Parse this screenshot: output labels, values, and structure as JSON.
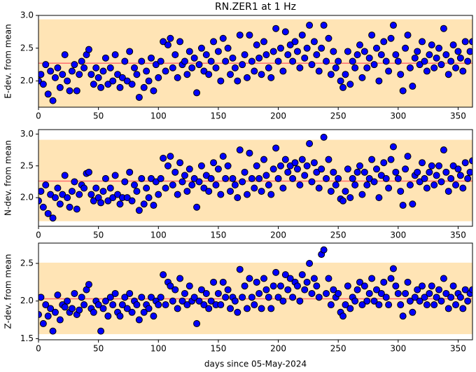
{
  "chart_data": [
    {
      "type": "scatter",
      "title": "RN.ZER1 at 1 Hz",
      "ylabel": "E-dev. from mean",
      "x": [
        0,
        2,
        4,
        6,
        8,
        10,
        12,
        14,
        16,
        18,
        20,
        22,
        24,
        26,
        28,
        30,
        32,
        34,
        36,
        38,
        40,
        42,
        44,
        46,
        48,
        50,
        52,
        54,
        56,
        58,
        60,
        62,
        64,
        66,
        68,
        70,
        72,
        74,
        76,
        78,
        80,
        82,
        84,
        86,
        88,
        90,
        92,
        94,
        96,
        98,
        100,
        102,
        104,
        106,
        108,
        110,
        112,
        114,
        116,
        118,
        120,
        122,
        124,
        126,
        128,
        130,
        132,
        134,
        136,
        138,
        140,
        142,
        144,
        146,
        148,
        150,
        152,
        154,
        156,
        158,
        160,
        162,
        164,
        166,
        168,
        170,
        172,
        174,
        176,
        178,
        180,
        182,
        184,
        186,
        188,
        190,
        192,
        194,
        196,
        198,
        200,
        202,
        204,
        206,
        208,
        210,
        212,
        214,
        216,
        218,
        220,
        222,
        224,
        226,
        228,
        230,
        232,
        234,
        236,
        238,
        240,
        242,
        244,
        246,
        248,
        250,
        252,
        254,
        256,
        258,
        260,
        262,
        264,
        266,
        268,
        270,
        272,
        274,
        276,
        278,
        280,
        282,
        284,
        286,
        288,
        290,
        292,
        294,
        296,
        298,
        300,
        302,
        304,
        306,
        308,
        310,
        312,
        314,
        316,
        318,
        320,
        322,
        324,
        326,
        328,
        330,
        332,
        334,
        336,
        338,
        340,
        342,
        344,
        346,
        348,
        350,
        352,
        354,
        356,
        358,
        360,
        362
      ],
      "values": [
        2.0,
        2.1,
        1.95,
        2.25,
        1.8,
        2.15,
        1.7,
        2.05,
        2.2,
        1.9,
        2.1,
        2.4,
        2.0,
        1.85,
        2.15,
        2.25,
        1.85,
        2.1,
        2.3,
        2.2,
        2.4,
        2.48,
        2.1,
        1.95,
        2.2,
        2.05,
        1.9,
        2.15,
        2.35,
        1.95,
        2.2,
        2.0,
        2.4,
        2.1,
        1.9,
        2.05,
        2.3,
        2.0,
        2.45,
        1.95,
        2.2,
        2.1,
        1.75,
        2.3,
        1.9,
        2.15,
        2.0,
        2.35,
        1.85,
        2.25,
        2.05,
        2.3,
        2.6,
        2.15,
        2.55,
        2.65,
        2.2,
        2.4,
        2.05,
        2.6,
        2.25,
        2.3,
        2.1,
        2.45,
        2.2,
        2.35,
        1.82,
        2.25,
        2.5,
        2.15,
        2.4,
        2.1,
        2.3,
        2.6,
        2.2,
        2.45,
        2.0,
        2.65,
        2.3,
        2.5,
        2.1,
        2.35,
        2.2,
        2.0,
        2.7,
        2.25,
        2.4,
        2.05,
        2.7,
        2.3,
        2.15,
        2.55,
        2.35,
        2.1,
        2.6,
        2.4,
        2.2,
        2.05,
        2.45,
        2.8,
        2.3,
        2.5,
        2.15,
        2.75,
        2.4,
        2.55,
        2.3,
        2.6,
        2.45,
        2.2,
        2.7,
        2.35,
        2.5,
        2.85,
        2.25,
        2.6,
        2.4,
        2.15,
        2.5,
        2.85,
        2.3,
        2.65,
        2.1,
        2.45,
        2.2,
        2.3,
        2.0,
        1.9,
        2.1,
        2.45,
        1.95,
        2.3,
        2.2,
        2.4,
        2.55,
        2.05,
        2.45,
        2.2,
        2.35,
        2.7,
        2.25,
        2.5,
        2.0,
        2.4,
        2.6,
        2.3,
        2.15,
        2.65,
        2.85,
        2.4,
        2.3,
        2.1,
        1.85,
        2.5,
        2.7,
        2.2,
        1.92,
        2.35,
        2.45,
        2.25,
        2.6,
        2.3,
        2.15,
        2.4,
        2.55,
        2.2,
        2.35,
        2.5,
        2.25,
        2.8,
        2.4,
        2.1,
        2.3,
        2.55,
        2.2,
        2.45,
        2.35,
        2.15,
        2.6,
        2.3,
        2.45,
        2.6
      ],
      "color": "#0000ff",
      "band": [
        1.6,
        2.94
      ],
      "band_color": "#ffe4b5",
      "mean": 2.27,
      "mean_color": "#ff6f6f",
      "xlim": [
        0,
        362
      ],
      "xticks": [
        0,
        50,
        100,
        150,
        200,
        250,
        300,
        350
      ],
      "ylim": [
        1.6,
        3.0
      ],
      "yticks": [
        {
          "value": 2.0,
          "label": "2.0"
        },
        2.5,
        {
          "value": 3.0,
          "label": "3.0"
        }
      ]
    },
    {
      "type": "scatter",
      "ylabel": "N-dev. from mean",
      "x": [
        0,
        2,
        4,
        6,
        8,
        10,
        12,
        14,
        16,
        18,
        20,
        22,
        24,
        26,
        28,
        30,
        32,
        34,
        36,
        38,
        40,
        42,
        44,
        46,
        48,
        50,
        52,
        54,
        56,
        58,
        60,
        62,
        64,
        66,
        68,
        70,
        72,
        74,
        76,
        78,
        80,
        82,
        84,
        86,
        88,
        90,
        92,
        94,
        96,
        98,
        100,
        102,
        104,
        106,
        108,
        110,
        112,
        114,
        116,
        118,
        120,
        122,
        124,
        126,
        128,
        130,
        132,
        134,
        136,
        138,
        140,
        142,
        144,
        146,
        148,
        150,
        152,
        154,
        156,
        158,
        160,
        162,
        164,
        166,
        168,
        170,
        172,
        174,
        176,
        178,
        180,
        182,
        184,
        186,
        188,
        190,
        192,
        194,
        196,
        198,
        200,
        202,
        204,
        206,
        208,
        210,
        212,
        214,
        216,
        218,
        220,
        222,
        224,
        226,
        228,
        230,
        232,
        234,
        236,
        238,
        240,
        242,
        244,
        246,
        248,
        250,
        252,
        254,
        256,
        258,
        260,
        262,
        264,
        266,
        268,
        270,
        272,
        274,
        276,
        278,
        280,
        282,
        284,
        286,
        288,
        290,
        292,
        294,
        296,
        298,
        300,
        302,
        304,
        306,
        308,
        310,
        312,
        314,
        316,
        318,
        320,
        322,
        324,
        326,
        328,
        330,
        332,
        334,
        336,
        338,
        340,
        342,
        344,
        346,
        348,
        350,
        352,
        354,
        356,
        358,
        360,
        362
      ],
      "values": [
        1.95,
        2.1,
        1.85,
        2.2,
        1.75,
        2.05,
        1.68,
        2.0,
        2.15,
        1.9,
        2.05,
        2.35,
        2.0,
        1.85,
        2.1,
        2.25,
        1.82,
        2.05,
        2.2,
        2.15,
        2.38,
        2.4,
        2.05,
        1.95,
        2.15,
        2.0,
        1.92,
        2.1,
        2.3,
        1.95,
        2.15,
        2.0,
        2.35,
        2.05,
        1.9,
        2.0,
        2.25,
        2.0,
        2.4,
        1.95,
        2.2,
        2.1,
        1.8,
        2.3,
        1.9,
        2.15,
        2.0,
        2.3,
        1.88,
        2.25,
        2.05,
        2.3,
        2.62,
        2.15,
        2.5,
        2.65,
        2.2,
        2.4,
        2.05,
        2.55,
        2.25,
        2.35,
        2.1,
        2.45,
        2.2,
        2.3,
        1.85,
        2.25,
        2.5,
        2.15,
        2.35,
        2.1,
        2.3,
        2.55,
        2.2,
        2.45,
        2.05,
        2.65,
        2.3,
        2.5,
        2.1,
        2.3,
        2.2,
        2.0,
        2.75,
        2.25,
        2.4,
        2.05,
        2.7,
        2.3,
        2.15,
        2.5,
        2.3,
        2.1,
        2.6,
        2.35,
        2.2,
        2.05,
        2.45,
        2.78,
        2.3,
        2.5,
        2.15,
        2.6,
        2.4,
        2.5,
        2.3,
        2.55,
        2.45,
        2.2,
        2.6,
        2.35,
        2.5,
        2.85,
        2.25,
        2.55,
        2.4,
        2.15,
        2.45,
        2.95,
        2.3,
        2.6,
        2.1,
        2.4,
        2.2,
        2.3,
        1.98,
        1.95,
        2.1,
        2.45,
        2.0,
        2.3,
        2.2,
        2.4,
        2.5,
        2.05,
        2.4,
        2.2,
        2.3,
        2.6,
        2.25,
        2.45,
        2.0,
        2.35,
        2.55,
        2.3,
        2.15,
        2.6,
        2.8,
        2.4,
        2.3,
        2.1,
        1.88,
        2.45,
        2.65,
        2.2,
        1.9,
        2.35,
        2.4,
        2.25,
        2.55,
        2.3,
        2.15,
        2.4,
        2.5,
        2.2,
        2.35,
        2.5,
        2.25,
        2.75,
        2.4,
        2.1,
        2.3,
        2.5,
        2.2,
        2.45,
        2.35,
        2.15,
        2.55,
        2.3,
        2.4,
        2.58
      ],
      "color": "#0000ff",
      "band": [
        1.63,
        2.91
      ],
      "band_color": "#ffe4b5",
      "mean": 2.26,
      "mean_color": "#ff6f6f",
      "xlim": [
        0,
        362
      ],
      "xticks": [
        0,
        50,
        100,
        150,
        200,
        250,
        300,
        350
      ],
      "ylim": [
        1.55,
        3.07
      ],
      "yticks": [
        {
          "value": 2.0,
          "label": "2.0"
        },
        2.5,
        {
          "value": 3.0,
          "label": "3.0"
        }
      ]
    },
    {
      "type": "scatter",
      "ylabel": "Z-dev. from mean",
      "xlabel": "days since 05-May-2024",
      "x": [
        0,
        2,
        4,
        6,
        8,
        10,
        12,
        14,
        16,
        18,
        20,
        22,
        24,
        26,
        28,
        30,
        32,
        34,
        36,
        38,
        40,
        42,
        44,
        46,
        48,
        50,
        52,
        54,
        56,
        58,
        60,
        62,
        64,
        66,
        68,
        70,
        72,
        74,
        76,
        78,
        80,
        82,
        84,
        86,
        88,
        90,
        92,
        94,
        96,
        98,
        100,
        102,
        104,
        106,
        108,
        110,
        112,
        114,
        116,
        118,
        120,
        122,
        124,
        126,
        128,
        130,
        132,
        134,
        136,
        138,
        140,
        142,
        144,
        146,
        148,
        150,
        152,
        154,
        156,
        158,
        160,
        162,
        164,
        166,
        168,
        170,
        172,
        174,
        176,
        178,
        180,
        182,
        184,
        186,
        188,
        190,
        192,
        194,
        196,
        198,
        200,
        202,
        204,
        206,
        208,
        210,
        212,
        214,
        216,
        218,
        220,
        222,
        224,
        226,
        228,
        230,
        232,
        234,
        236,
        238,
        240,
        242,
        244,
        246,
        248,
        250,
        252,
        254,
        256,
        258,
        260,
        262,
        264,
        266,
        268,
        270,
        272,
        274,
        276,
        278,
        280,
        282,
        284,
        286,
        288,
        290,
        292,
        294,
        296,
        298,
        300,
        302,
        304,
        306,
        308,
        310,
        312,
        314,
        316,
        318,
        320,
        322,
        324,
        326,
        328,
        330,
        332,
        334,
        336,
        338,
        340,
        342,
        344,
        346,
        348,
        350,
        352,
        354,
        356,
        358,
        360,
        362
      ],
      "values": [
        1.82,
        2.05,
        1.7,
        1.95,
        1.8,
        1.9,
        1.6,
        1.85,
        2.08,
        1.75,
        1.95,
        1.92,
        2.0,
        1.85,
        1.9,
        2.1,
        1.82,
        1.88,
        2.05,
        1.95,
        2.15,
        2.22,
        1.9,
        1.85,
        2.0,
        1.95,
        1.6,
        1.9,
        2.0,
        1.8,
        2.05,
        1.95,
        2.1,
        1.85,
        1.8,
        1.95,
        2.05,
        1.9,
        2.1,
        1.85,
        2.0,
        1.95,
        1.75,
        2.05,
        1.85,
        1.95,
        1.9,
        2.05,
        1.8,
        2.0,
        1.95,
        2.05,
        2.35,
        1.95,
        2.25,
        2.2,
        2.0,
        2.15,
        1.9,
        2.3,
        2.0,
        2.1,
        1.95,
        2.2,
        2.0,
        2.05,
        1.7,
        2.0,
        2.15,
        1.95,
        2.1,
        1.9,
        2.0,
        2.25,
        1.95,
        2.1,
        1.95,
        2.25,
        2.05,
        2.15,
        1.9,
        2.05,
        2.0,
        1.85,
        2.42,
        2.05,
        2.2,
        1.9,
        2.3,
        2.05,
        1.95,
        2.25,
        2.1,
        1.9,
        2.3,
        2.15,
        2.05,
        1.9,
        2.2,
        2.38,
        2.05,
        2.2,
        2.0,
        2.35,
        2.15,
        2.3,
        2.05,
        2.25,
        2.2,
        2.0,
        2.35,
        2.15,
        2.25,
        2.5,
        2.1,
        2.3,
        2.2,
        2.05,
        2.62,
        2.68,
        2.1,
        2.3,
        1.95,
        2.15,
        2.05,
        2.1,
        1.85,
        1.8,
        1.95,
        2.2,
        1.9,
        2.05,
        2.0,
        2.15,
        2.25,
        1.95,
        2.2,
        2.0,
        2.1,
        2.3,
        2.0,
        2.15,
        1.95,
        2.1,
        2.25,
        2.05,
        1.95,
        2.3,
        2.43,
        2.2,
        2.1,
        1.95,
        1.8,
        2.1,
        2.25,
        2.0,
        1.85,
        2.05,
        2.15,
        2.0,
        2.2,
        2.05,
        1.95,
        2.1,
        2.2,
        1.95,
        2.05,
        2.15,
        2.0,
        2.3,
        2.1,
        1.9,
        2.05,
        2.2,
        1.95,
        2.1,
        2.05,
        1.9,
        2.15,
        2.0,
        2.1,
        2.15
      ],
      "color": "#0000ff",
      "band": [
        1.56,
        2.51
      ],
      "band_color": "#ffe4b5",
      "mean": 2.03,
      "mean_color": "#ff6f6f",
      "xlim": [
        0,
        362
      ],
      "xticks": [
        0,
        50,
        100,
        150,
        200,
        250,
        300,
        350
      ],
      "ylim": [
        1.485,
        2.77
      ],
      "yticks": [
        1.5,
        {
          "value": 2.0,
          "label": "2.0"
        },
        2.5
      ]
    }
  ]
}
